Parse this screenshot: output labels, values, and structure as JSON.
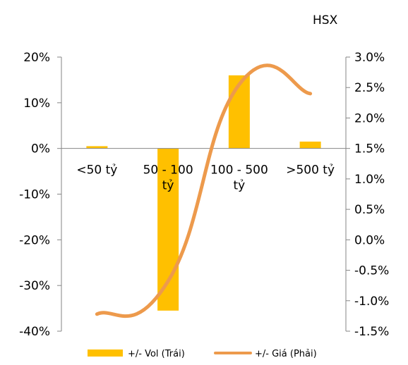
{
  "chart_data": {
    "type": "bar",
    "corner_label": "HSX",
    "categories": [
      [
        "<50 tỷ"
      ],
      [
        "50 - 100",
        "tỷ"
      ],
      [
        "100 - 500",
        "tỷ"
      ],
      [
        ">500 tỷ"
      ]
    ],
    "series": [
      {
        "name": "+/- Vol (Trái)",
        "type": "bar",
        "axis": "left",
        "color": "#FFC000",
        "values": [
          0.5,
          -35.5,
          16.0,
          1.5
        ]
      },
      {
        "name": "+/- Giá (Phải)",
        "type": "line",
        "axis": "right",
        "color": "#ED9A4C",
        "smooth": true,
        "values": [
          -1.22,
          -0.68,
          2.55,
          2.4
        ]
      }
    ],
    "left_axis": {
      "ylim": [
        -40,
        20
      ],
      "ticks": [
        20,
        10,
        0,
        -10,
        -20,
        -30,
        -40
      ],
      "tick_labels": [
        "20%",
        "10%",
        "0%",
        "-10%",
        "-20%",
        "-30%",
        "-40%"
      ]
    },
    "right_axis": {
      "ylim": [
        -1.5,
        3.0
      ],
      "ticks": [
        3.0,
        2.5,
        2.0,
        1.5,
        1.0,
        0.5,
        0.0,
        -0.5,
        -1.0,
        -1.5
      ],
      "tick_labels": [
        "3.0%",
        "2.5%",
        "2.0%",
        "1.5%",
        "1.0%",
        "0.5%",
        "0.0%",
        "-0.5%",
        "-1.0%",
        "-1.5%"
      ]
    },
    "legend": {
      "position": "bottom",
      "entries": [
        "+/- Vol (Trái)",
        "+/- Giá (Phải)"
      ]
    },
    "grid": false
  }
}
